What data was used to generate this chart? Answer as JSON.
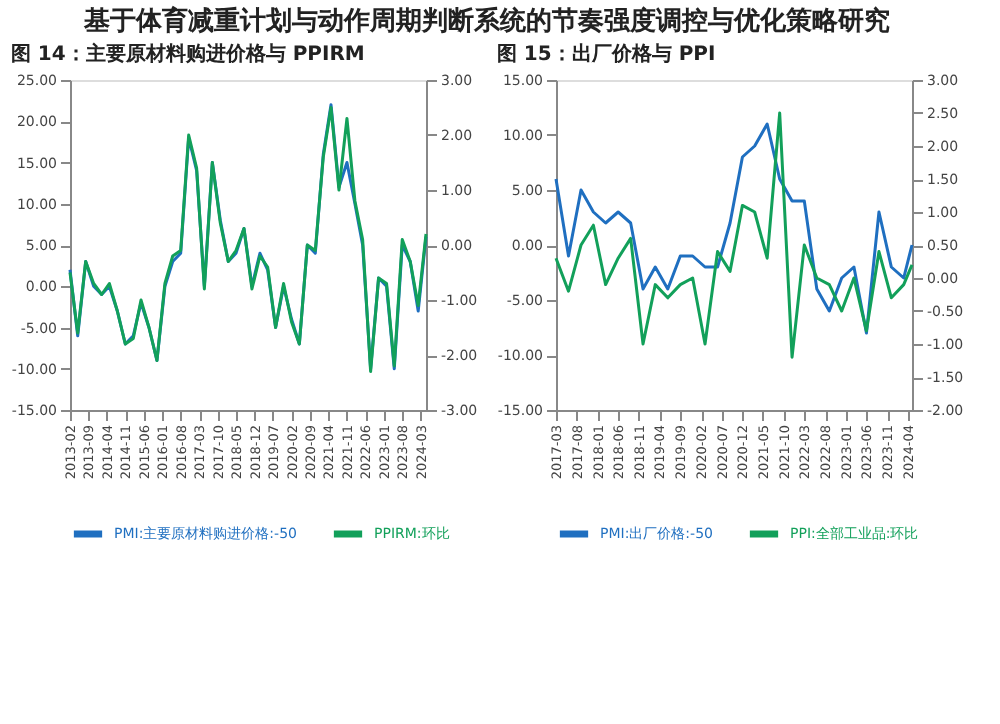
{
  "chart_data": [
    {
      "type": "line",
      "title": "图 14：主要原材料购进价格与 PPIRM",
      "annotations": [
        "基于体育减重计划与动作周期判断系统的节奏强度调控与优化策略研究"
      ],
      "x": [
        "2013-02",
        "2013-05",
        "2013-08",
        "2013-11",
        "2014-02",
        "2014-05",
        "2014-08",
        "2014-11",
        "2015-02",
        "2015-05",
        "2015-08",
        "2015-11",
        "2016-02",
        "2016-05",
        "2016-08",
        "2016-11",
        "2017-02",
        "2017-05",
        "2017-08",
        "2017-11",
        "2018-02",
        "2018-05",
        "2018-08",
        "2018-11",
        "2019-02",
        "2019-05",
        "2019-08",
        "2019-11",
        "2020-02",
        "2020-05",
        "2020-08",
        "2020-11",
        "2021-02",
        "2021-05",
        "2021-08",
        "2021-11",
        "2022-02",
        "2022-05",
        "2022-08",
        "2022-11",
        "2023-02",
        "2023-05",
        "2023-08",
        "2023-11",
        "2024-02",
        "2024-05"
      ],
      "series": [
        {
          "name": "PMI:主要原材料购进价格:-50",
          "color": "#1f6fc0",
          "values": [
            2,
            -6,
            3,
            0,
            -1,
            0,
            -3,
            -7,
            -6,
            -2,
            -5,
            -9,
            0,
            3,
            4,
            18,
            14,
            0,
            15,
            8,
            3,
            4,
            7,
            0,
            4,
            2,
            -5,
            0,
            -4,
            -7,
            5,
            4,
            16,
            22,
            12,
            15,
            10,
            5,
            -10,
            1,
            0,
            -10,
            5,
            3,
            -3,
            6
          ]
        },
        {
          "name": "PPIRM:环比",
          "color": "#12a05a",
          "axis": "y2",
          "values": [
            -0.5,
            -1.6,
            -0.3,
            -0.7,
            -0.9,
            -0.7,
            -1.2,
            -1.8,
            -1.7,
            -1.0,
            -1.5,
            -2.1,
            -0.7,
            -0.2,
            -0.1,
            2.0,
            1.4,
            -0.8,
            1.5,
            0.4,
            -0.3,
            -0.1,
            0.3,
            -0.8,
            -0.2,
            -0.4,
            -1.5,
            -0.7,
            -1.4,
            -1.8,
            0.0,
            -0.1,
            1.6,
            2.5,
            1.0,
            2.3,
            0.8,
            0.1,
            -2.3,
            -0.6,
            -0.7,
            -2.2,
            0.1,
            -0.3,
            -1.1,
            0.2
          ]
        }
      ],
      "xlim": [
        "2013-02",
        "2024-05"
      ],
      "xticks": [
        "2013-02",
        "2013-09",
        "2014-04",
        "2014-11",
        "2015-06",
        "2016-01",
        "2016-08",
        "2017-03",
        "2017-10",
        "2018-05",
        "2018-12",
        "2019-07",
        "2020-02",
        "2020-09",
        "2021-04",
        "2021-11",
        "2022-06",
        "2023-01",
        "2023-08",
        "2024-03"
      ],
      "ylim": [
        -15,
        25
      ],
      "yticks": [
        {
          "value": -15,
          "label": "-15.00"
        },
        {
          "value": -10,
          "label": "-10.00"
        },
        {
          "value": -5,
          "label": "-5.00"
        },
        {
          "value": 0,
          "label": "0.00"
        },
        {
          "value": 5,
          "label": "5.00"
        },
        {
          "value": 10,
          "label": "10.00"
        },
        {
          "value": 15,
          "label": "15.00"
        },
        {
          "value": 20,
          "label": "20.00"
        },
        {
          "value": 25,
          "label": "25.00"
        }
      ],
      "y2lim": [
        -3,
        3
      ],
      "y2ticks": [
        {
          "value": -3,
          "label": "-3.00"
        },
        {
          "value": -2,
          "label": "-2.00"
        },
        {
          "value": -1,
          "label": "-1.00"
        },
        {
          "value": 0,
          "label": "0.00"
        },
        {
          "value": 1,
          "label": "1.00"
        },
        {
          "value": 2,
          "label": "2.00"
        },
        {
          "value": 3,
          "label": "3.00"
        }
      ],
      "legend": "bottom",
      "grid": false
    },
    {
      "type": "line",
      "title": "图 15：出厂价格与 PPI",
      "x": [
        "2017-03",
        "2017-06",
        "2017-09",
        "2017-12",
        "2018-03",
        "2018-06",
        "2018-09",
        "2018-12",
        "2019-03",
        "2019-06",
        "2019-09",
        "2019-12",
        "2020-03",
        "2020-06",
        "2020-09",
        "2020-12",
        "2021-03",
        "2021-06",
        "2021-09",
        "2021-12",
        "2022-03",
        "2022-06",
        "2022-09",
        "2022-12",
        "2023-03",
        "2023-06",
        "2023-09",
        "2023-12",
        "2024-03",
        "2024-05"
      ],
      "series": [
        {
          "name": "PMI:出厂价格:-50",
          "color": "#1f6fc0",
          "values": [
            6,
            -1,
            5,
            3,
            2,
            3,
            2,
            -4,
            -2,
            -4,
            -1,
            -1,
            -2,
            -2,
            2,
            8,
            9,
            11,
            6,
            4,
            4,
            -4,
            -6,
            -3,
            -2,
            -8,
            3,
            -2,
            -3,
            0
          ]
        },
        {
          "name": "PPI:全部工业品:环比",
          "color": "#12a05a",
          "axis": "y2",
          "values": [
            0.3,
            -0.2,
            0.5,
            0.8,
            -0.1,
            0.3,
            0.6,
            -1.0,
            -0.1,
            -0.3,
            -0.1,
            0.0,
            -1.0,
            0.4,
            0.1,
            1.1,
            1.0,
            0.3,
            2.5,
            -1.2,
            0.5,
            0.0,
            -0.1,
            -0.5,
            0.0,
            -0.8,
            0.4,
            -0.3,
            -0.1,
            0.2
          ]
        }
      ],
      "xlim": [
        "2017-03",
        "2024-05"
      ],
      "xticks": [
        "2017-03",
        "2017-08",
        "2018-01",
        "2018-06",
        "2018-11",
        "2019-04",
        "2019-09",
        "2020-02",
        "2020-07",
        "2020-12",
        "2021-05",
        "2021-10",
        "2022-03",
        "2022-08",
        "2023-01",
        "2023-06",
        "2023-11",
        "2024-04"
      ],
      "ylim": [
        -15,
        15
      ],
      "yticks": [
        {
          "value": -15,
          "label": "-15.00"
        },
        {
          "value": -10,
          "label": "-10.00"
        },
        {
          "value": -5,
          "label": "-5.00"
        },
        {
          "value": 0,
          "label": "0.00"
        },
        {
          "value": 5,
          "label": "5.00"
        },
        {
          "value": 10,
          "label": "10.00"
        },
        {
          "value": 15,
          "label": "15.00"
        }
      ],
      "y2lim": [
        -2,
        3
      ],
      "y2ticks": [
        {
          "value": -2,
          "label": "-2.00"
        },
        {
          "value": -1.5,
          "label": "-1.50"
        },
        {
          "value": -1,
          "label": "-1.00"
        },
        {
          "value": -0.5,
          "label": "-0.50"
        },
        {
          "value": 0,
          "label": "0.00"
        },
        {
          "value": 0.5,
          "label": "0.50"
        },
        {
          "value": 1,
          "label": "1.00"
        },
        {
          "value": 1.5,
          "label": "1.50"
        },
        {
          "value": 2,
          "label": "2.00"
        },
        {
          "value": 2.5,
          "label": "2.50"
        },
        {
          "value": 3,
          "label": "3.00"
        }
      ],
      "legend": "bottom",
      "grid": false
    }
  ]
}
